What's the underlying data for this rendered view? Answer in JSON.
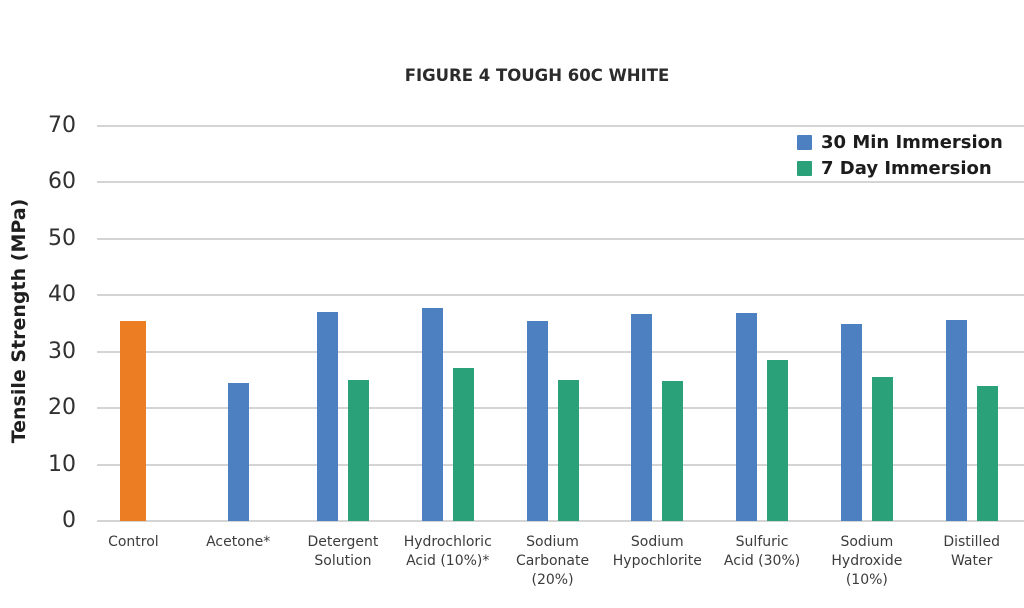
{
  "page": {
    "background": "#ffffff"
  },
  "chart_data": {
    "type": "bar",
    "title": "FIGURE 4 TOUGH 60C WHITE",
    "ylabel": "Tensile Strength (MPa)",
    "ylim": [
      0,
      70
    ],
    "ytick_step": 10,
    "yticks": [
      0,
      10,
      20,
      30,
      40,
      50,
      60,
      70
    ],
    "grid": true,
    "gridline_color": "#d4d4d4",
    "legend_position": "top-right",
    "categories": [
      "Control",
      "Acetone*",
      "Detergent\nSolution",
      "Hydrochloric\nAcid (10%)*",
      "Sodium\nCarbonate\n(20%)",
      "Sodium\nHypochlorite",
      "Sulfuric\nAcid (30%)",
      "Sodium\nHydroxide\n(10%)",
      "Distilled\nWater"
    ],
    "series": [
      {
        "name": "30 Min Immersion",
        "color": "#4C80C0",
        "values": [
          35.4,
          24.5,
          37.0,
          37.8,
          35.4,
          36.7,
          36.8,
          35.0,
          35.6
        ]
      },
      {
        "name": "7 Day Immersion",
        "color": "#2AA179",
        "values": [
          null,
          null,
          25.0,
          27.2,
          25.0,
          24.9,
          28.5,
          25.5,
          23.9
        ]
      }
    ],
    "highlight": {
      "category_index": 0,
      "series_index": 0,
      "color": "#ED7D23"
    }
  }
}
